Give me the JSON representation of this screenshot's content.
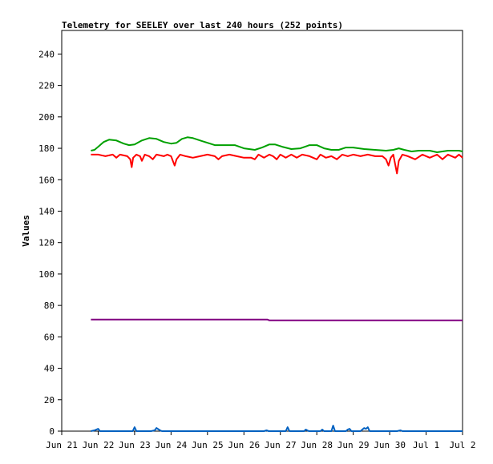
{
  "chart_data": {
    "type": "line",
    "title": "Telemetry for SEELEY over last 240 hours (252 points)",
    "xlabel": "",
    "ylabel": "Values",
    "x_ticks": [
      "Jun 21",
      "Jun 22",
      "Jun 23",
      "Jun 24",
      "Jun 25",
      "Jun 26",
      "Jun 27",
      "Jun 28",
      "Jun 29",
      "Jun 30",
      "Jul 1",
      "Jul 2"
    ],
    "xlim": [
      0,
      11
    ],
    "x_unit": "days after Jun 21 00:00",
    "y_ticks": [
      "0",
      "20",
      "40",
      "60",
      "80",
      "100",
      "120",
      "140",
      "160",
      "180",
      "200",
      "220",
      "240"
    ],
    "ylim": [
      0,
      255
    ],
    "grid": false,
    "series": [
      {
        "color": "#00a000",
        "points": [
          [
            0.8,
            178.5
          ],
          [
            0.9,
            179
          ],
          [
            1.0,
            181
          ],
          [
            1.15,
            184
          ],
          [
            1.3,
            185.5
          ],
          [
            1.5,
            185
          ],
          [
            1.7,
            183
          ],
          [
            1.85,
            182
          ],
          [
            2.0,
            182.5
          ],
          [
            2.2,
            185
          ],
          [
            2.4,
            186.5
          ],
          [
            2.6,
            186
          ],
          [
            2.8,
            184
          ],
          [
            3.0,
            183
          ],
          [
            3.15,
            183.5
          ],
          [
            3.3,
            186
          ],
          [
            3.45,
            187
          ],
          [
            3.6,
            186.5
          ],
          [
            3.8,
            185
          ],
          [
            4.0,
            183.5
          ],
          [
            4.2,
            182
          ],
          [
            4.5,
            182
          ],
          [
            4.75,
            182
          ],
          [
            5.0,
            180
          ],
          [
            5.3,
            179
          ],
          [
            5.5,
            180.5
          ],
          [
            5.7,
            182.5
          ],
          [
            5.85,
            182.5
          ],
          [
            6.05,
            181
          ],
          [
            6.3,
            179.5
          ],
          [
            6.55,
            180
          ],
          [
            6.8,
            182
          ],
          [
            7.0,
            182
          ],
          [
            7.2,
            180
          ],
          [
            7.4,
            179
          ],
          [
            7.6,
            179
          ],
          [
            7.8,
            180.5
          ],
          [
            8.0,
            180.5
          ],
          [
            8.3,
            179.5
          ],
          [
            8.6,
            179
          ],
          [
            8.9,
            178.5
          ],
          [
            9.1,
            179
          ],
          [
            9.25,
            180
          ],
          [
            9.4,
            179
          ],
          [
            9.6,
            178
          ],
          [
            9.8,
            178.5
          ],
          [
            10.1,
            178.5
          ],
          [
            10.3,
            177.5
          ],
          [
            10.6,
            178.5
          ],
          [
            10.9,
            178.5
          ],
          [
            11.0,
            178
          ]
        ]
      },
      {
        "color": "#ff0000",
        "points": [
          [
            0.8,
            176
          ],
          [
            1.0,
            176
          ],
          [
            1.2,
            175
          ],
          [
            1.4,
            176
          ],
          [
            1.5,
            174
          ],
          [
            1.6,
            176
          ],
          [
            1.8,
            175
          ],
          [
            1.88,
            173
          ],
          [
            1.92,
            168
          ],
          [
            1.96,
            174
          ],
          [
            2.05,
            176
          ],
          [
            2.15,
            175
          ],
          [
            2.2,
            172
          ],
          [
            2.28,
            176
          ],
          [
            2.4,
            175
          ],
          [
            2.5,
            173
          ],
          [
            2.6,
            176
          ],
          [
            2.8,
            175
          ],
          [
            2.9,
            176
          ],
          [
            3.0,
            175
          ],
          [
            3.05,
            172
          ],
          [
            3.1,
            169
          ],
          [
            3.15,
            173
          ],
          [
            3.25,
            176
          ],
          [
            3.4,
            175
          ],
          [
            3.6,
            174
          ],
          [
            3.8,
            175
          ],
          [
            4.0,
            176
          ],
          [
            4.2,
            175
          ],
          [
            4.3,
            173
          ],
          [
            4.4,
            175
          ],
          [
            4.6,
            176
          ],
          [
            4.8,
            175
          ],
          [
            5.0,
            174
          ],
          [
            5.2,
            174
          ],
          [
            5.3,
            173
          ],
          [
            5.4,
            176
          ],
          [
            5.55,
            174
          ],
          [
            5.7,
            176
          ],
          [
            5.8,
            175
          ],
          [
            5.9,
            173
          ],
          [
            6.0,
            176
          ],
          [
            6.15,
            174
          ],
          [
            6.3,
            176
          ],
          [
            6.45,
            174
          ],
          [
            6.6,
            176
          ],
          [
            6.8,
            175
          ],
          [
            7.0,
            173
          ],
          [
            7.1,
            176
          ],
          [
            7.25,
            174
          ],
          [
            7.4,
            175
          ],
          [
            7.55,
            173
          ],
          [
            7.7,
            176
          ],
          [
            7.85,
            175
          ],
          [
            8.0,
            176
          ],
          [
            8.2,
            175
          ],
          [
            8.4,
            176
          ],
          [
            8.6,
            175
          ],
          [
            8.8,
            175
          ],
          [
            8.9,
            173
          ],
          [
            8.97,
            169
          ],
          [
            9.03,
            174
          ],
          [
            9.1,
            176
          ],
          [
            9.15,
            170
          ],
          [
            9.2,
            164
          ],
          [
            9.25,
            172
          ],
          [
            9.35,
            176
          ],
          [
            9.5,
            175
          ],
          [
            9.7,
            173
          ],
          [
            9.9,
            176
          ],
          [
            10.1,
            174
          ],
          [
            10.3,
            176
          ],
          [
            10.45,
            173
          ],
          [
            10.6,
            176
          ],
          [
            10.8,
            174
          ],
          [
            10.9,
            176
          ],
          [
            11.0,
            174
          ]
        ]
      },
      {
        "color": "#800080",
        "points": [
          [
            0.8,
            71
          ],
          [
            5.65,
            71
          ],
          [
            5.7,
            70.5
          ],
          [
            11.0,
            70.5
          ]
        ]
      },
      {
        "color": "#0060c0",
        "points": [
          [
            0.8,
            0
          ],
          [
            0.9,
            0.5
          ],
          [
            1.0,
            1.5
          ],
          [
            1.05,
            0
          ],
          [
            1.95,
            0
          ],
          [
            2.0,
            2.5
          ],
          [
            2.05,
            0
          ],
          [
            2.45,
            0
          ],
          [
            2.55,
            0.5
          ],
          [
            2.6,
            2
          ],
          [
            2.7,
            0.5
          ],
          [
            2.75,
            0
          ],
          [
            5.55,
            0
          ],
          [
            5.62,
            0.5
          ],
          [
            5.68,
            0
          ],
          [
            6.15,
            0
          ],
          [
            6.2,
            2.5
          ],
          [
            6.25,
            0
          ],
          [
            6.65,
            0
          ],
          [
            6.7,
            1
          ],
          [
            6.78,
            0
          ],
          [
            7.1,
            0
          ],
          [
            7.15,
            1
          ],
          [
            7.2,
            0
          ],
          [
            7.4,
            0
          ],
          [
            7.45,
            3.5
          ],
          [
            7.5,
            0
          ],
          [
            7.8,
            0
          ],
          [
            7.85,
            1
          ],
          [
            7.9,
            1.5
          ],
          [
            7.95,
            0
          ],
          [
            8.2,
            0
          ],
          [
            8.25,
            1
          ],
          [
            8.3,
            2
          ],
          [
            8.35,
            1.5
          ],
          [
            8.4,
            2.5
          ],
          [
            8.45,
            0
          ],
          [
            9.2,
            0
          ],
          [
            9.3,
            0.5
          ],
          [
            9.35,
            0
          ],
          [
            11.0,
            0
          ]
        ]
      }
    ]
  }
}
